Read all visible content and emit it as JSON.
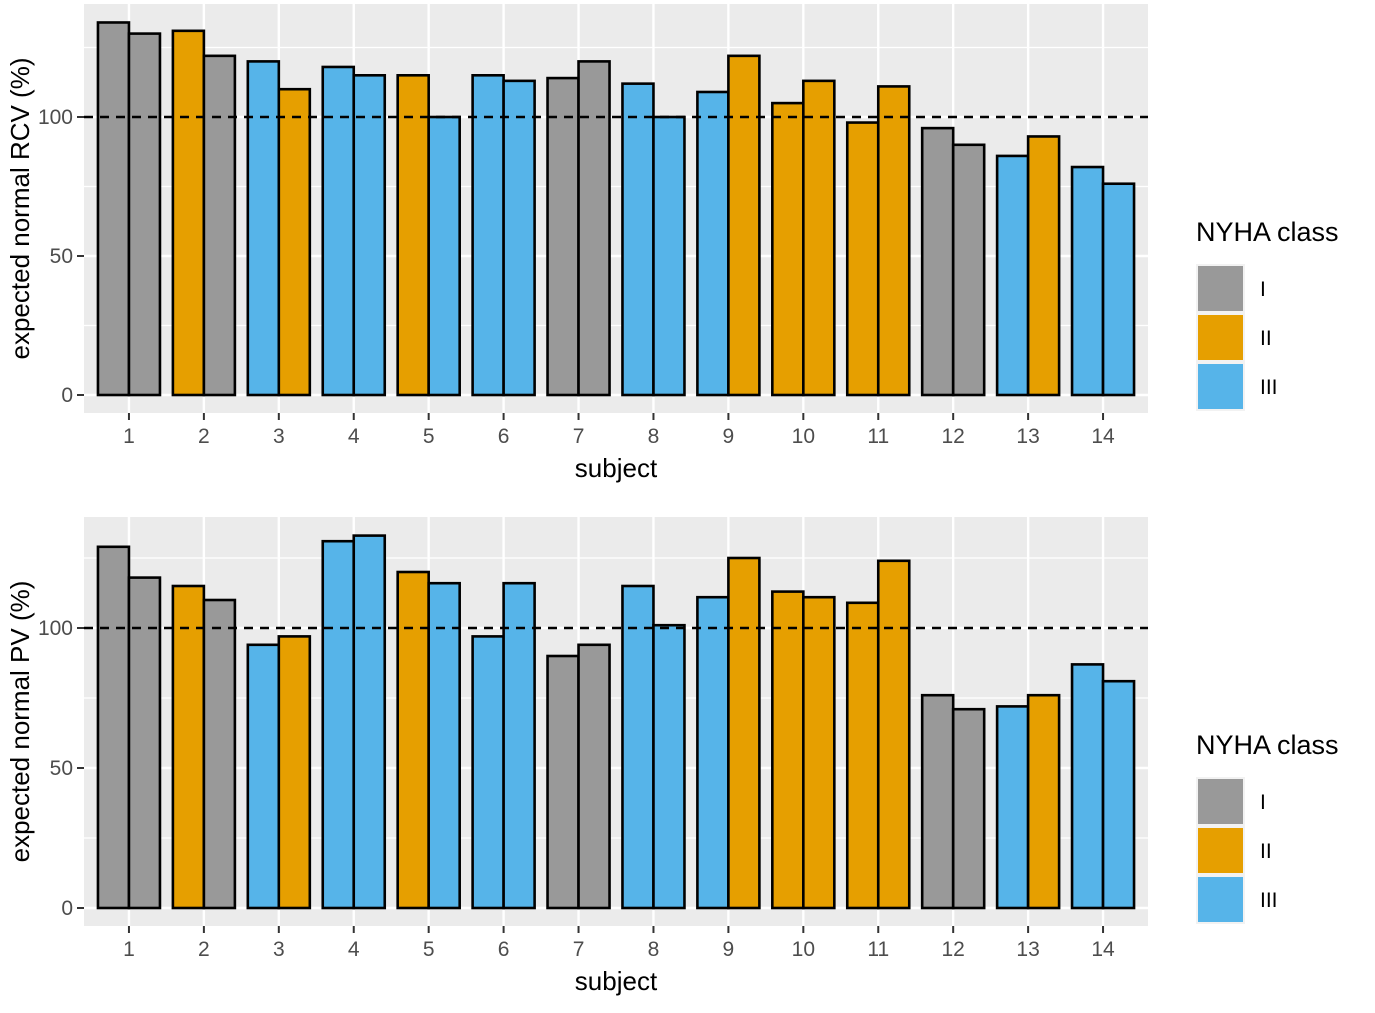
{
  "chart_data": [
    {
      "type": "bar",
      "xlabel": "subject",
      "ylabel": "expected normal RCV (%)",
      "categories": [
        "1",
        "2",
        "3",
        "4",
        "5",
        "6",
        "7",
        "8",
        "9",
        "10",
        "11",
        "12",
        "13",
        "14"
      ],
      "yticks": [
        0,
        50,
        100
      ],
      "ylim": [
        0,
        140
      ],
      "reference_line": 100,
      "grid": true,
      "legend": {
        "title": "NYHA class",
        "placement": "right",
        "entries": [
          "I",
          "II",
          "III"
        ]
      },
      "bars": [
        [
          {
            "value": 134,
            "class": "I"
          },
          {
            "value": 130,
            "class": "I"
          }
        ],
        [
          {
            "value": 131,
            "class": "II"
          },
          {
            "value": 122,
            "class": "I"
          }
        ],
        [
          {
            "value": 120,
            "class": "III"
          },
          {
            "value": 110,
            "class": "II"
          }
        ],
        [
          {
            "value": 118,
            "class": "III"
          },
          {
            "value": 115,
            "class": "III"
          }
        ],
        [
          {
            "value": 115,
            "class": "II"
          },
          {
            "value": 100,
            "class": "III"
          }
        ],
        [
          {
            "value": 115,
            "class": "III"
          },
          {
            "value": 113,
            "class": "III"
          }
        ],
        [
          {
            "value": 114,
            "class": "I"
          },
          {
            "value": 120,
            "class": "I"
          }
        ],
        [
          {
            "value": 112,
            "class": "III"
          },
          {
            "value": 100,
            "class": "III"
          }
        ],
        [
          {
            "value": 109,
            "class": "III"
          },
          {
            "value": 122,
            "class": "II"
          }
        ],
        [
          {
            "value": 105,
            "class": "II"
          },
          {
            "value": 113,
            "class": "II"
          }
        ],
        [
          {
            "value": 98,
            "class": "II"
          },
          {
            "value": 111,
            "class": "II"
          }
        ],
        [
          {
            "value": 96,
            "class": "I"
          },
          {
            "value": 90,
            "class": "I"
          }
        ],
        [
          {
            "value": 86,
            "class": "III"
          },
          {
            "value": 93,
            "class": "II"
          }
        ],
        [
          {
            "value": 82,
            "class": "III"
          },
          {
            "value": 76,
            "class": "III"
          }
        ]
      ]
    },
    {
      "type": "bar",
      "xlabel": "subject",
      "ylabel": "expected normal PV (%)",
      "categories": [
        "1",
        "2",
        "3",
        "4",
        "5",
        "6",
        "7",
        "8",
        "9",
        "10",
        "11",
        "12",
        "13",
        "14"
      ],
      "yticks": [
        0,
        50,
        100
      ],
      "ylim": [
        0,
        140
      ],
      "reference_line": 100,
      "grid": true,
      "legend": {
        "title": "NYHA class",
        "placement": "right",
        "entries": [
          "I",
          "II",
          "III"
        ]
      },
      "bars": [
        [
          {
            "value": 129,
            "class": "I"
          },
          {
            "value": 118,
            "class": "I"
          }
        ],
        [
          {
            "value": 115,
            "class": "II"
          },
          {
            "value": 110,
            "class": "I"
          }
        ],
        [
          {
            "value": 94,
            "class": "III"
          },
          {
            "value": 97,
            "class": "II"
          }
        ],
        [
          {
            "value": 131,
            "class": "III"
          },
          {
            "value": 133,
            "class": "III"
          }
        ],
        [
          {
            "value": 120,
            "class": "II"
          },
          {
            "value": 116,
            "class": "III"
          }
        ],
        [
          {
            "value": 97,
            "class": "III"
          },
          {
            "value": 116,
            "class": "III"
          }
        ],
        [
          {
            "value": 90,
            "class": "I"
          },
          {
            "value": 94,
            "class": "I"
          }
        ],
        [
          {
            "value": 115,
            "class": "III"
          },
          {
            "value": 101,
            "class": "III"
          }
        ],
        [
          {
            "value": 111,
            "class": "III"
          },
          {
            "value": 125,
            "class": "II"
          }
        ],
        [
          {
            "value": 113,
            "class": "II"
          },
          {
            "value": 111,
            "class": "II"
          }
        ],
        [
          {
            "value": 109,
            "class": "II"
          },
          {
            "value": 124,
            "class": "II"
          }
        ],
        [
          {
            "value": 76,
            "class": "I"
          },
          {
            "value": 71,
            "class": "I"
          }
        ],
        [
          {
            "value": 72,
            "class": "III"
          },
          {
            "value": 76,
            "class": "II"
          }
        ],
        [
          {
            "value": 87,
            "class": "III"
          },
          {
            "value": 81,
            "class": "III"
          }
        ]
      ]
    }
  ],
  "colors": {
    "I": "#999999",
    "II": "#E69F00",
    "III": "#56B4E9",
    "panel_background": "#EBEBEB",
    "grid": "#FFFFFF",
    "bar_outline": "#000000"
  }
}
